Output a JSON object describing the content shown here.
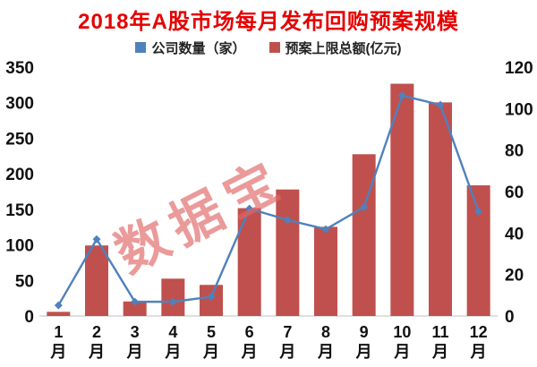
{
  "title": "2018年A股市场每月发布回购预案规模",
  "watermark": "数据宝",
  "legend": {
    "company_count": {
      "label": "公司数量（家）",
      "color": "#4f81bd"
    },
    "cap_total": {
      "label": "预案上限总额(亿元)",
      "color": "#c0504d"
    }
  },
  "chart_data": {
    "type": "bar+line",
    "title": "2018年A股市场每月发布回购预案规模",
    "categories": [
      "1月",
      "2月",
      "3月",
      "4月",
      "5月",
      "6月",
      "7月",
      "8月",
      "9月",
      "10月",
      "11月",
      "12月"
    ],
    "series": [
      {
        "name": "公司数量（家）",
        "chart_type": "line",
        "axis": "left",
        "color": "#4f81bd",
        "values": [
          15,
          108,
          20,
          20,
          27,
          151,
          135,
          122,
          153,
          310,
          297,
          147
        ]
      },
      {
        "name": "预案上限总额(亿元)",
        "chart_type": "bar",
        "axis": "right",
        "color": "#c0504d",
        "values": [
          2,
          34,
          7,
          18,
          15,
          52,
          61,
          43,
          78,
          112,
          103,
          63
        ]
      }
    ],
    "left_axis": {
      "min": 0,
      "max": 350,
      "step": 50
    },
    "right_axis": {
      "min": 0,
      "max": 120,
      "step": 20
    },
    "grid": false,
    "legend_position": "top"
  },
  "colors": {
    "title": "#e60000",
    "bar": "#c0504d",
    "line": "#4f81bd",
    "axis_text": "#111111",
    "baseline": "#bfbfbf",
    "watermark": "#e06666"
  }
}
